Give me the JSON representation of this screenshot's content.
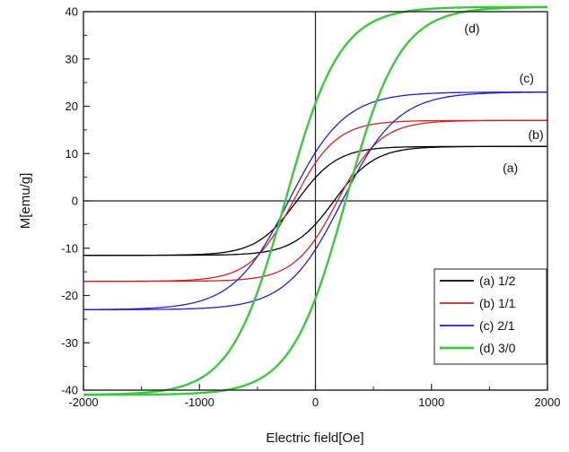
{
  "chart_data": {
    "type": "line",
    "title": "",
    "xlabel": "Electric field[Oe]",
    "ylabel": "M[emu/g]",
    "xlim": [
      -2000,
      2000
    ],
    "ylim": [
      -40,
      40
    ],
    "x_ticks": [
      "-2000",
      "-1000",
      "0",
      "1000",
      "2000"
    ],
    "y_ticks": [
      "-40",
      "-30",
      "-20",
      "-10",
      "0",
      "10",
      "20",
      "30",
      "40"
    ],
    "grid": false,
    "zero_lines": true,
    "legend_position": "bottom-right",
    "series": [
      {
        "name": "(a) 1/2",
        "curve_label": "(a)",
        "color": "#000000",
        "ms": 11.5,
        "hc": 160,
        "k": 350,
        "stroke_width": 1.3
      },
      {
        "name": "(b) 1/1",
        "curve_label": "(b)",
        "color": "#d42020",
        "ms": 17,
        "hc": 190,
        "k": 370,
        "stroke_width": 1.3
      },
      {
        "name": "(c) 2/1",
        "curve_label": "(c)",
        "color": "#2020cc",
        "ms": 23,
        "hc": 230,
        "k": 480,
        "stroke_width": 1.3
      },
      {
        "name": "(d) 3/0",
        "curve_label": "(d)",
        "color": "#3cc83c",
        "ms": 41,
        "hc": 260,
        "k": 470,
        "stroke_width": 2.4
      }
    ]
  }
}
